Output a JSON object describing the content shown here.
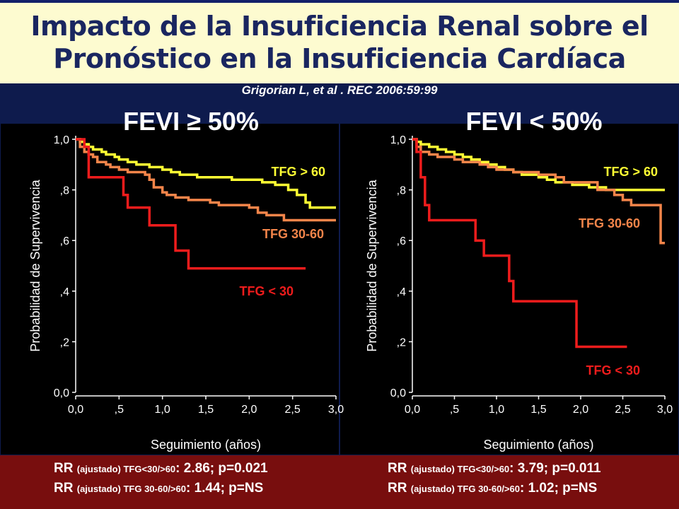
{
  "slide": {
    "title_line1": "Impacto de la Insuficiencia Renal sobre el",
    "title_line2": "Pronóstico en la Insuficiencia Cardíaca",
    "citation": "Grigorian L, et al . REC 2006:59:99"
  },
  "colors": {
    "yellow": "#ffff33",
    "orange": "#f4854a",
    "red": "#ee1c1c"
  },
  "footer": {
    "left": {
      "line1": {
        "prefix": "RR ",
        "small": "(ajustado) TFG<30/>60",
        "suffix": ": 2.86; p=0.021"
      },
      "line2": {
        "prefix": "RR ",
        "small": "(ajustado) TFG 30-60/>60",
        "suffix": ": 1.44; p=NS"
      }
    },
    "right": {
      "line1": {
        "prefix": "RR ",
        "small": "(ajustado) TFG<30/>60",
        "suffix": ": 3.79; p=0.011"
      },
      "line2": {
        "prefix": "RR ",
        "small": "(ajustado) TFG 30-60/>60",
        "suffix": ": 1.02; p=NS"
      }
    }
  },
  "chart_data": [
    {
      "type": "line",
      "title": "FEVI ≥ 50%",
      "xlabel": "Seguimiento (años)",
      "ylabel": "Probabilidad de Supervivencia",
      "xlim": [
        0,
        3.0
      ],
      "ylim": [
        0,
        1.0
      ],
      "x_ticks": [
        "0,0",
        ",5",
        "1,0",
        "1,5",
        "2,0",
        "2,5",
        "3,0"
      ],
      "y_ticks": [
        "0,0",
        ",2",
        ",4",
        ",6",
        ",8",
        "1,0"
      ],
      "step": true,
      "series": [
        {
          "name": "TFG > 60",
          "color": "#ffff33",
          "x": [
            0,
            0.05,
            0.1,
            0.15,
            0.2,
            0.3,
            0.35,
            0.45,
            0.5,
            0.6,
            0.7,
            0.85,
            1.0,
            1.1,
            1.2,
            1.4,
            1.6,
            1.8,
            2.0,
            2.15,
            2.3,
            2.45,
            2.55,
            2.65,
            2.7,
            3.0
          ],
          "y": [
            1.0,
            0.99,
            0.98,
            0.97,
            0.96,
            0.95,
            0.94,
            0.93,
            0.92,
            0.91,
            0.9,
            0.89,
            0.88,
            0.87,
            0.86,
            0.85,
            0.85,
            0.84,
            0.84,
            0.83,
            0.82,
            0.8,
            0.78,
            0.75,
            0.73,
            0.73
          ]
        },
        {
          "name": "TFG 30-60",
          "color": "#f4854a",
          "x": [
            0,
            0.05,
            0.1,
            0.15,
            0.2,
            0.25,
            0.3,
            0.35,
            0.4,
            0.5,
            0.6,
            0.8,
            0.85,
            0.9,
            1.0,
            1.05,
            1.15,
            1.3,
            1.45,
            1.55,
            1.65,
            1.8,
            2.0,
            2.1,
            2.2,
            2.4,
            2.7,
            3.0
          ],
          "y": [
            1.0,
            0.97,
            0.95,
            0.94,
            0.93,
            0.91,
            0.91,
            0.9,
            0.89,
            0.88,
            0.87,
            0.86,
            0.84,
            0.81,
            0.79,
            0.78,
            0.77,
            0.76,
            0.76,
            0.75,
            0.74,
            0.74,
            0.73,
            0.71,
            0.7,
            0.68,
            0.68,
            0.68
          ]
        },
        {
          "name": "TFG < 30",
          "color": "#ee1c1c",
          "x": [
            0,
            0.1,
            0.15,
            0.5,
            0.55,
            0.6,
            0.7,
            0.85,
            1.1,
            1.15,
            1.3,
            1.5,
            2.65
          ],
          "y": [
            1.0,
            0.97,
            0.85,
            0.85,
            0.78,
            0.73,
            0.73,
            0.66,
            0.66,
            0.56,
            0.49,
            0.49,
            0.49
          ]
        }
      ]
    },
    {
      "type": "line",
      "title": "FEVI < 50%",
      "xlabel": "Seguimiento (años)",
      "ylabel": "Probabilidad de Supervivencia",
      "xlim": [
        0,
        3.0
      ],
      "ylim": [
        0,
        1.0
      ],
      "x_ticks": [
        "0,0",
        ",5",
        "1,0",
        "1,5",
        "2,0",
        "2,5",
        "3,0"
      ],
      "y_ticks": [
        "0,0",
        ",2",
        ",4",
        ",6",
        ",8",
        "1,0"
      ],
      "step": true,
      "series": [
        {
          "name": "TFG > 60",
          "color": "#ffff33",
          "x": [
            0,
            0.05,
            0.1,
            0.2,
            0.3,
            0.4,
            0.5,
            0.6,
            0.7,
            0.8,
            0.9,
            1.0,
            1.1,
            1.2,
            1.3,
            1.4,
            1.5,
            1.6,
            1.7,
            1.8,
            1.9,
            2.0,
            2.1,
            2.2,
            2.3,
            2.5,
            2.6,
            2.7,
            3.0
          ],
          "y": [
            1.0,
            0.99,
            0.98,
            0.97,
            0.96,
            0.95,
            0.94,
            0.93,
            0.92,
            0.91,
            0.9,
            0.89,
            0.88,
            0.87,
            0.86,
            0.86,
            0.85,
            0.84,
            0.83,
            0.83,
            0.82,
            0.82,
            0.81,
            0.81,
            0.8,
            0.8,
            0.8,
            0.8,
            0.8
          ]
        },
        {
          "name": "TFG 30-60",
          "color": "#f4854a",
          "x": [
            0,
            0.05,
            0.1,
            0.2,
            0.3,
            0.4,
            0.5,
            0.6,
            0.8,
            0.9,
            1.0,
            1.2,
            1.5,
            1.7,
            1.8,
            2.2,
            2.4,
            2.5,
            2.6,
            2.8,
            2.95,
            3.0
          ],
          "y": [
            1.0,
            0.97,
            0.95,
            0.94,
            0.93,
            0.93,
            0.92,
            0.91,
            0.9,
            0.89,
            0.88,
            0.87,
            0.86,
            0.85,
            0.83,
            0.8,
            0.78,
            0.76,
            0.74,
            0.74,
            0.59,
            0.59
          ]
        },
        {
          "name": "TFG < 30",
          "color": "#ee1c1c",
          "x": [
            0,
            0.05,
            0.1,
            0.15,
            0.2,
            0.55,
            0.75,
            0.85,
            1.15,
            1.2,
            1.3,
            1.6,
            1.95,
            2.0,
            2.55
          ],
          "y": [
            1.0,
            0.95,
            0.85,
            0.74,
            0.68,
            0.68,
            0.6,
            0.54,
            0.44,
            0.36,
            0.36,
            0.36,
            0.18,
            0.18,
            0.18
          ]
        }
      ]
    }
  ]
}
